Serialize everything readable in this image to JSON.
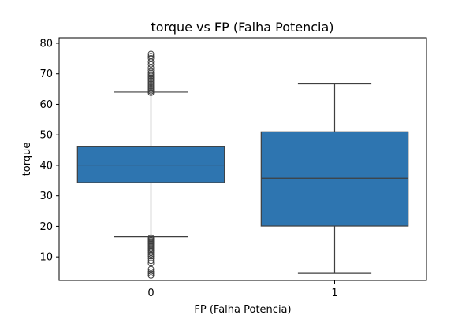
{
  "chart_data": {
    "type": "box",
    "title": "torque vs FP (Falha Potencia)",
    "xlabel": "FP (Falha Potencia)",
    "ylabel": "torque",
    "categories": [
      "0",
      "1"
    ],
    "ylim": [
      2.3,
      81.8
    ],
    "yticks": [
      10,
      20,
      30,
      40,
      50,
      60,
      70,
      80
    ],
    "grid": false,
    "box_color": "#2e75b0",
    "line_color": "#3f3f3f",
    "boxes": [
      {
        "category": "0",
        "whisker_low": 16.6,
        "q1": 34.3,
        "median": 40.1,
        "q3": 46.1,
        "whisker_high": 64.0,
        "outliers_low": [
          16.3,
          15.9,
          15.5,
          15.1,
          14.7,
          14.3,
          13.9,
          13.5,
          13.1,
          12.7,
          12.3,
          11.9,
          11.4,
          10.8,
          10.2,
          9.5,
          8.7,
          7.9,
          6.0,
          5.2,
          4.6,
          3.9
        ],
        "outliers_high": [
          63.8,
          64.3,
          64.8,
          65.3,
          65.8,
          66.3,
          66.8,
          67.3,
          67.8,
          68.3,
          68.8,
          69.3,
          69.8,
          70.3,
          71.1,
          72.0,
          73.1,
          74.0,
          75.1,
          75.8,
          76.5
        ]
      },
      {
        "category": "1",
        "whisker_low": 4.6,
        "q1": 20.1,
        "median": 35.8,
        "q3": 51.0,
        "whisker_high": 66.7,
        "outliers_low": [],
        "outliers_high": []
      }
    ]
  }
}
